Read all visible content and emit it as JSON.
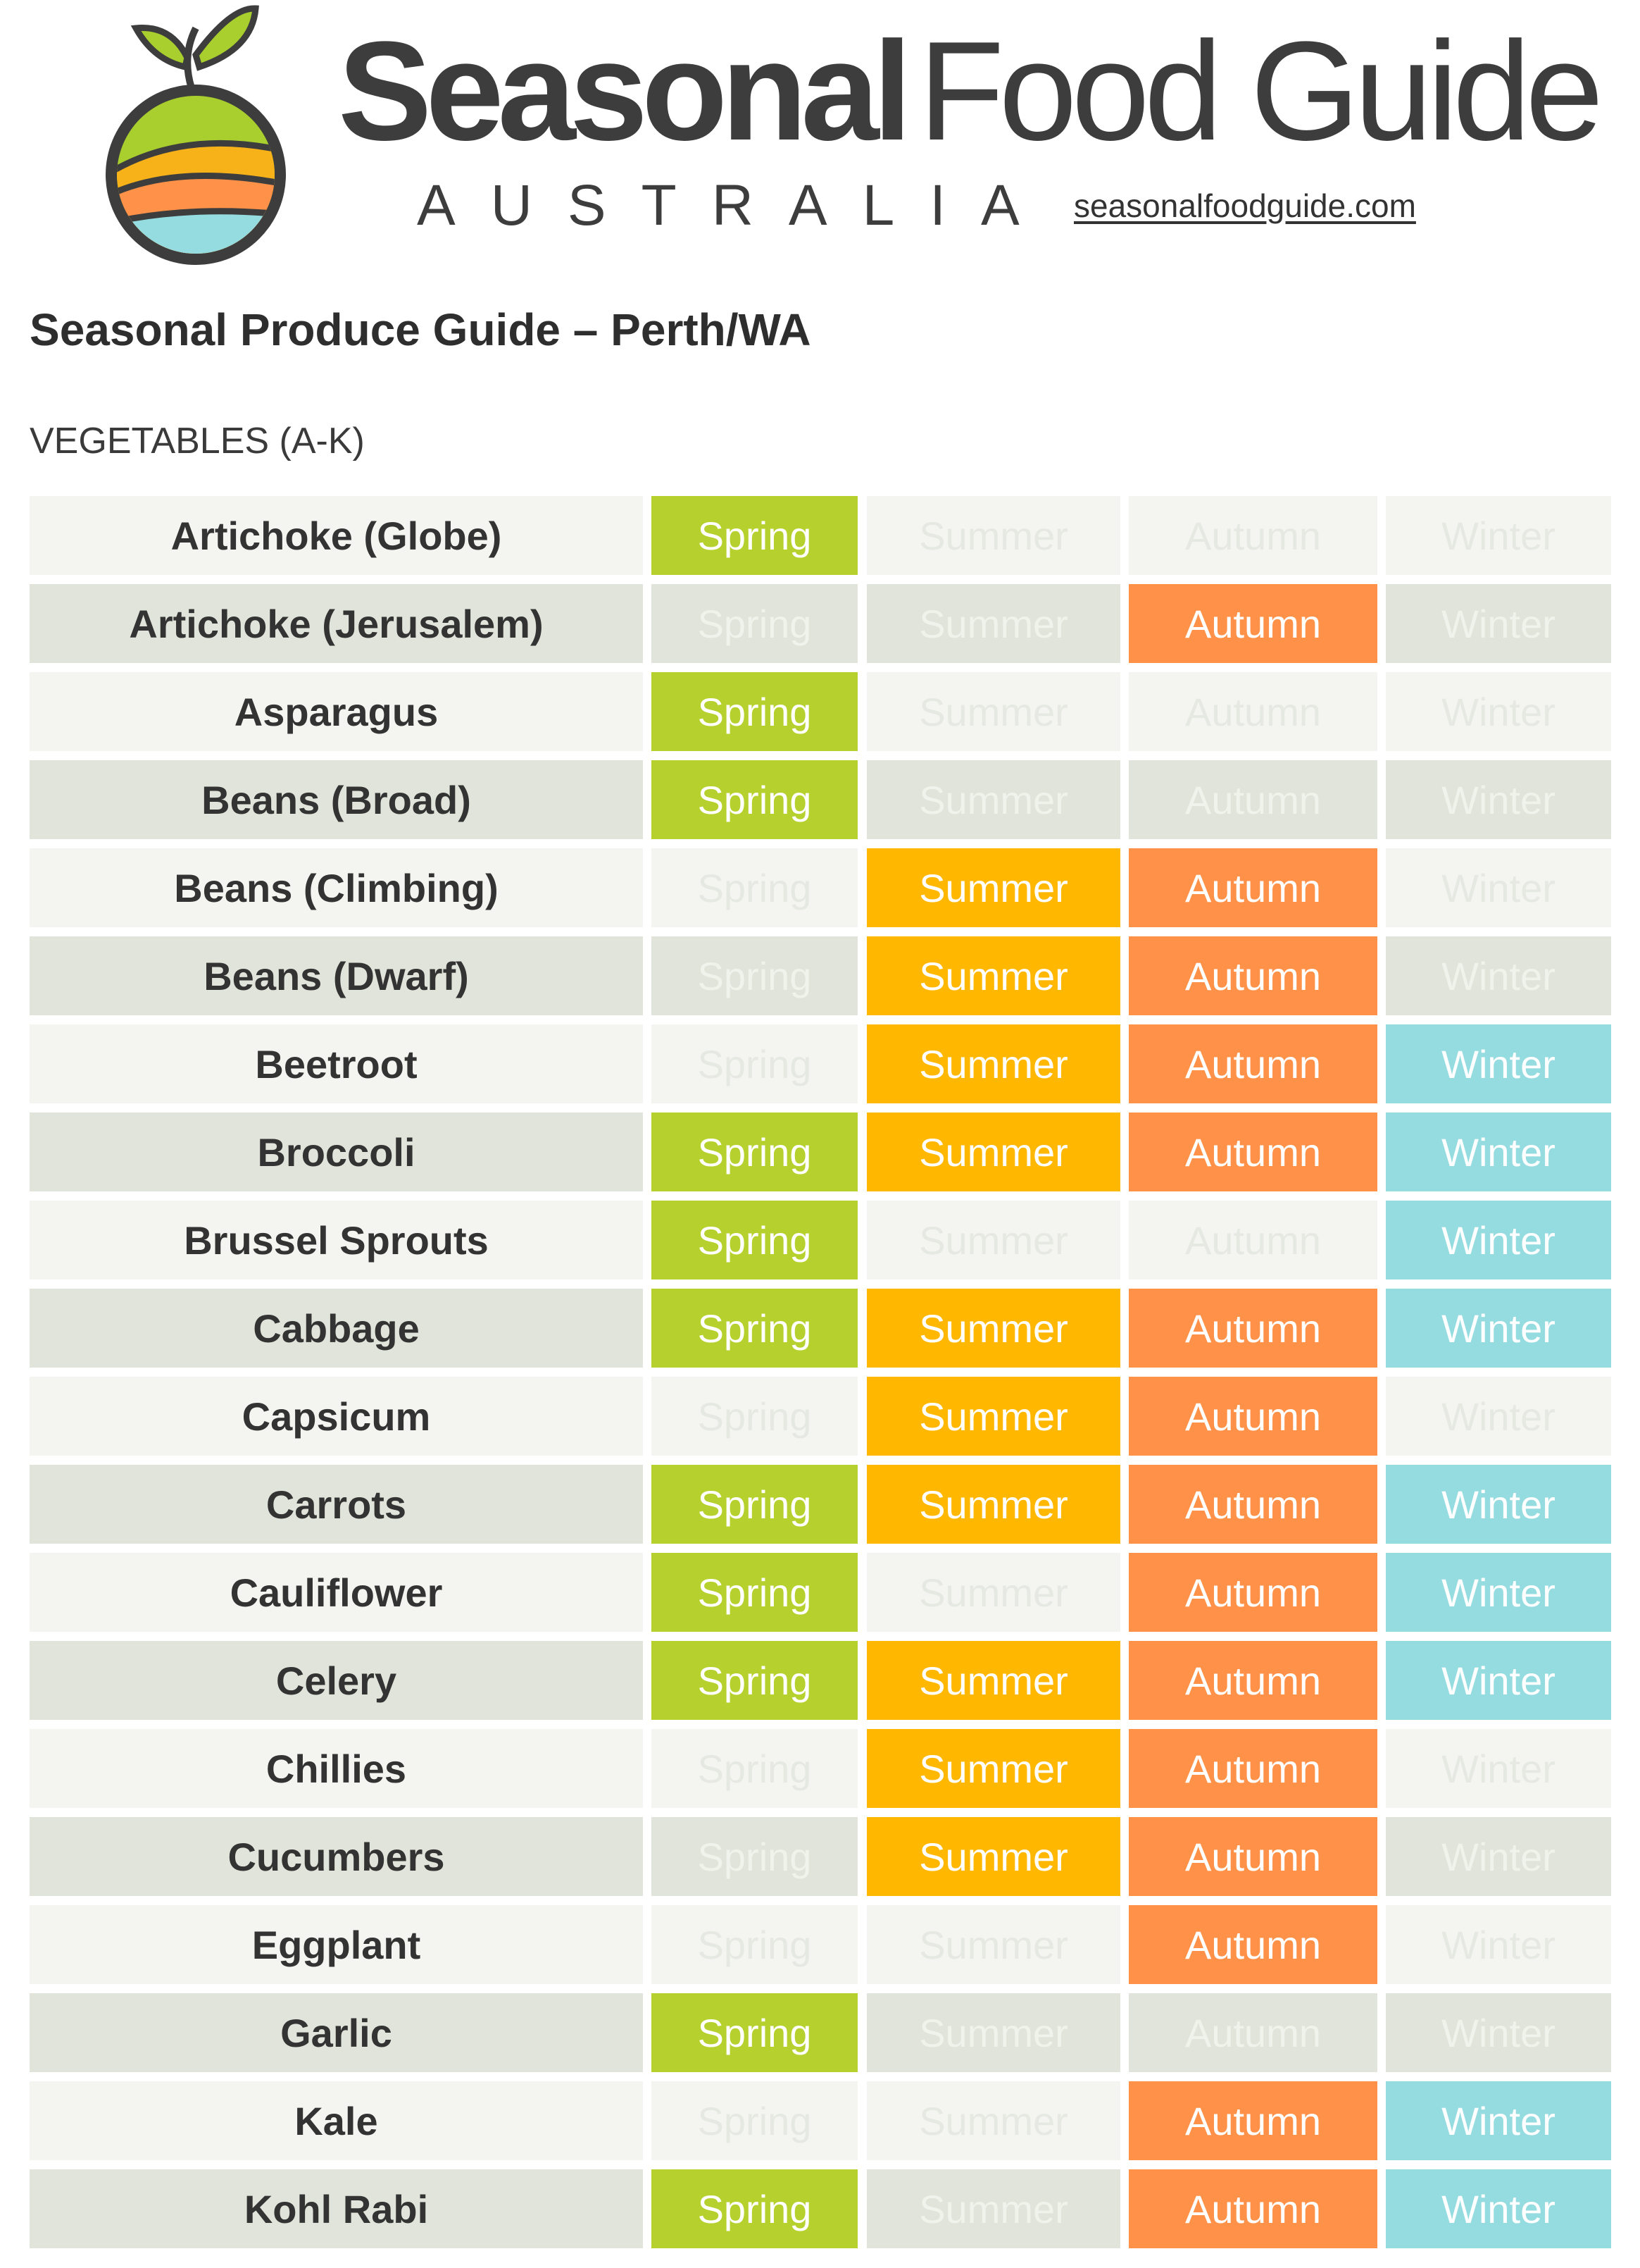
{
  "brand": {
    "title_bold": "Seasonal",
    "title_light": "Food Guide",
    "subtitle": "AUSTRALIA",
    "url": "seasonalfoodguide.com"
  },
  "colors": {
    "spring": "#b6d12d",
    "summer": "#ffb700",
    "autumn": "#ff9148",
    "winter": "#95dce1",
    "row_light": "#f4f5f0",
    "row_dark": "#e1e4da"
  },
  "title": "Seasonal Produce Guide – Perth/WA",
  "section": "VEGETABLES (A-K)",
  "season_labels": [
    "Spring",
    "Summer",
    "Autumn",
    "Winter"
  ],
  "rows": [
    {
      "name": "Artichoke (Globe)",
      "seasons": [
        true,
        false,
        false,
        false
      ]
    },
    {
      "name": "Artichoke (Jerusalem)",
      "seasons": [
        false,
        false,
        true,
        false
      ]
    },
    {
      "name": "Asparagus",
      "seasons": [
        true,
        false,
        false,
        false
      ]
    },
    {
      "name": "Beans (Broad)",
      "seasons": [
        true,
        false,
        false,
        false
      ]
    },
    {
      "name": "Beans (Climbing)",
      "seasons": [
        false,
        true,
        true,
        false
      ]
    },
    {
      "name": "Beans (Dwarf)",
      "seasons": [
        false,
        true,
        true,
        false
      ]
    },
    {
      "name": "Beetroot",
      "seasons": [
        false,
        true,
        true,
        true
      ]
    },
    {
      "name": "Broccoli",
      "seasons": [
        true,
        true,
        true,
        true
      ]
    },
    {
      "name": "Brussel Sprouts",
      "seasons": [
        true,
        false,
        false,
        true
      ]
    },
    {
      "name": "Cabbage",
      "seasons": [
        true,
        true,
        true,
        true
      ]
    },
    {
      "name": "Capsicum",
      "seasons": [
        false,
        true,
        true,
        false
      ]
    },
    {
      "name": "Carrots",
      "seasons": [
        true,
        true,
        true,
        true
      ]
    },
    {
      "name": "Cauliflower",
      "seasons": [
        true,
        false,
        true,
        true
      ]
    },
    {
      "name": "Celery",
      "seasons": [
        true,
        true,
        true,
        true
      ]
    },
    {
      "name": "Chillies",
      "seasons": [
        false,
        true,
        true,
        false
      ]
    },
    {
      "name": "Cucumbers",
      "seasons": [
        false,
        true,
        true,
        false
      ]
    },
    {
      "name": "Eggplant",
      "seasons": [
        false,
        false,
        true,
        false
      ]
    },
    {
      "name": "Garlic",
      "seasons": [
        true,
        false,
        false,
        false
      ]
    },
    {
      "name": "Kale",
      "seasons": [
        false,
        false,
        true,
        true
      ]
    },
    {
      "name": "Kohl Rabi",
      "seasons": [
        true,
        false,
        true,
        true
      ]
    }
  ]
}
